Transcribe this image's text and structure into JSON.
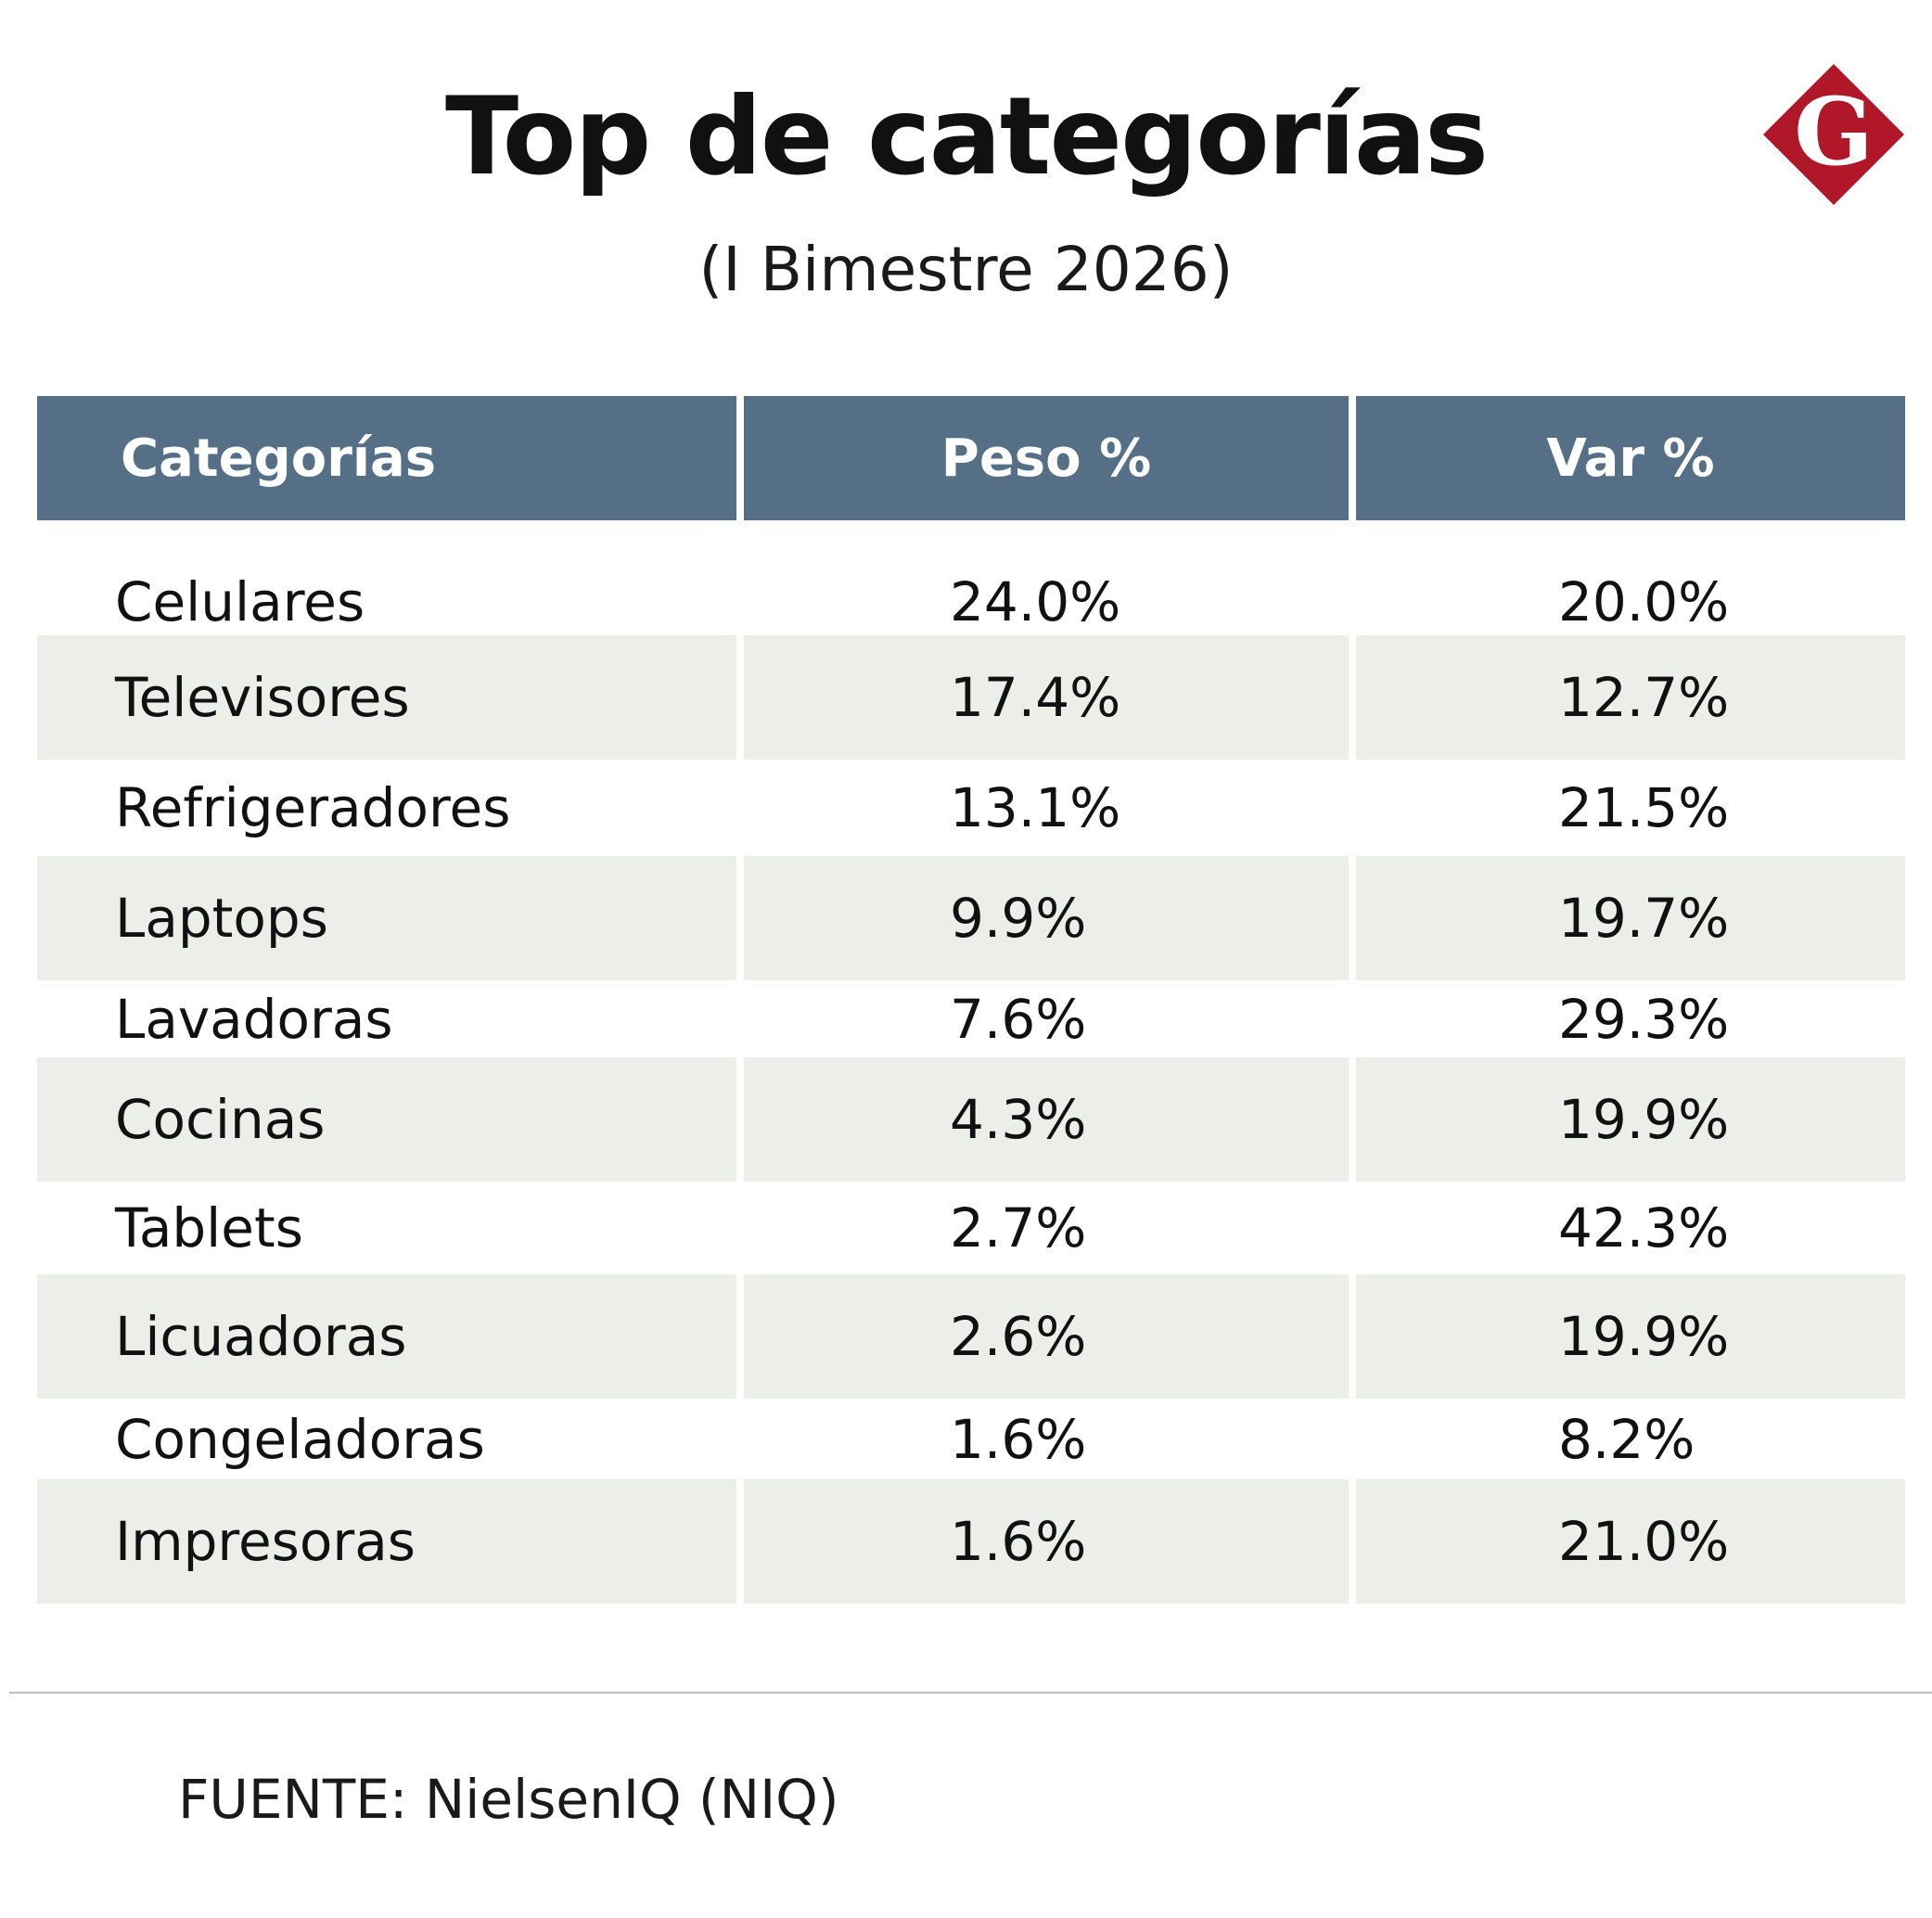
{
  "header": {
    "title": "Top de categorías",
    "subtitle": "(I Bimestre 2026)"
  },
  "logo": {
    "letter": "G",
    "color": "#b0182a"
  },
  "chart_data": {
    "type": "table",
    "columns": [
      "Categorías",
      "Peso %",
      "Var %"
    ],
    "rows": [
      [
        "Celulares",
        "24.0%",
        "20.0%"
      ],
      [
        "Televisores",
        "17.4%",
        "12.7%"
      ],
      [
        "Refrigeradores",
        "13.1%",
        "21.5%"
      ],
      [
        "Laptops",
        "9.9%",
        "19.7%"
      ],
      [
        "Lavadoras",
        "7.6%",
        "29.3%"
      ],
      [
        "Cocinas",
        "4.3%",
        "19.9%"
      ],
      [
        "Tablets",
        "2.7%",
        "42.3%"
      ],
      [
        "Licuadoras",
        "2.6%",
        "19.9%"
      ],
      [
        "Congeladoras",
        "1.6%",
        "8.2%"
      ],
      [
        "Impresoras",
        "1.6%",
        "21.0%"
      ]
    ],
    "header_color": "#557086",
    "shaded_row_color": "#ebeee9"
  },
  "footer": {
    "source": "FUENTE: NielsenIQ (NIQ)"
  }
}
